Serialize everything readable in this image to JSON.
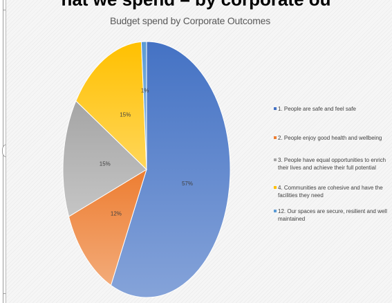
{
  "header_fragment": "hat we spend – by corporate ou",
  "chart_data": {
    "type": "pie",
    "title": "Budget spend by Corporate Outcomes",
    "slices": [
      {
        "label": "1. People are safe and feel safe",
        "value": 57,
        "value_label": "57%",
        "color": "#4472c4"
      },
      {
        "label": "2. People enjoy good health and wellbeing",
        "value": 12,
        "value_label": "12%",
        "color": "#ed7d31"
      },
      {
        "label": "3. People have equal opportunities to enrich their lives and achieve their full potential",
        "value": 15,
        "value_label": "15%",
        "color": "#a5a5a5"
      },
      {
        "label": "4. Communities are cohesive and have the facilities they need",
        "value": 15,
        "value_label": "15%",
        "color": "#ffc000"
      },
      {
        "label": "12. Our spaces are secure, resilient and well maintained",
        "value": 1,
        "value_label": "1%",
        "color": "#5b9bd5"
      }
    ],
    "legend_position": "right",
    "start_angle_deg": 90,
    "direction": "clockwise"
  }
}
